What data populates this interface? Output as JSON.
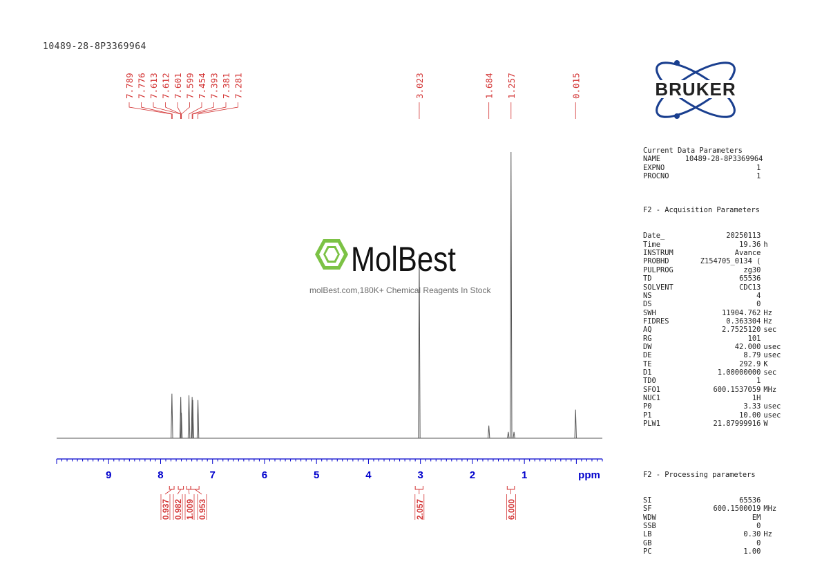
{
  "title": "10489-28-8P3369964",
  "logo": {
    "text": "BRUKER"
  },
  "watermark": {
    "brand": "MolBest",
    "tagline": "molBest.com,180K+ Chemical Reagents In Stock"
  },
  "colors": {
    "peak_labels": "#d33333",
    "axis": "#0000cc",
    "spectrum": "#555555",
    "logo": "#1a3f8f"
  },
  "parameters": {
    "current": {
      "title": "Current Data Parameters",
      "rows": [
        {
          "key": "NAME",
          "value": "10489-28-8P3369964",
          "unit": ""
        },
        {
          "key": "EXPNO",
          "value": "1",
          "unit": ""
        },
        {
          "key": "PROCNO",
          "value": "1",
          "unit": ""
        }
      ]
    },
    "acquisition": {
      "title": "F2 - Acquisition Parameters",
      "rows": [
        {
          "key": "Date_",
          "value": "20250113",
          "unit": ""
        },
        {
          "key": "Time",
          "value": "19.36",
          "unit": "h"
        },
        {
          "key": "INSTRUM",
          "value": "Avance",
          "unit": ""
        },
        {
          "key": "PROBHD",
          "value": "Z154705_0134 (",
          "unit": ""
        },
        {
          "key": "PULPROG",
          "value": "zg30",
          "unit": ""
        },
        {
          "key": "TD",
          "value": "65536",
          "unit": ""
        },
        {
          "key": "SOLVENT",
          "value": "CDC13",
          "unit": ""
        },
        {
          "key": "NS",
          "value": "4",
          "unit": ""
        },
        {
          "key": "DS",
          "value": "0",
          "unit": ""
        },
        {
          "key": "SWH",
          "value": "11904.762",
          "unit": "Hz"
        },
        {
          "key": "FIDRES",
          "value": "0.363304",
          "unit": "Hz"
        },
        {
          "key": "AQ",
          "value": "2.7525120",
          "unit": "sec"
        },
        {
          "key": "RG",
          "value": "101",
          "unit": ""
        },
        {
          "key": "DW",
          "value": "42.000",
          "unit": "usec"
        },
        {
          "key": "DE",
          "value": "8.79",
          "unit": "usec"
        },
        {
          "key": "TE",
          "value": "292.9",
          "unit": "K"
        },
        {
          "key": "D1",
          "value": "1.00000000",
          "unit": "sec"
        },
        {
          "key": "TD0",
          "value": "1",
          "unit": ""
        },
        {
          "key": "SFO1",
          "value": "600.1537059",
          "unit": "MHz"
        },
        {
          "key": "NUC1",
          "value": "1H",
          "unit": ""
        },
        {
          "key": "P0",
          "value": "3.33",
          "unit": "usec"
        },
        {
          "key": "P1",
          "value": "10.00",
          "unit": "usec"
        },
        {
          "key": "PLW1",
          "value": "21.87999916",
          "unit": "W"
        }
      ]
    },
    "processing": {
      "title": "F2 - Processing parameters",
      "rows": [
        {
          "key": "SI",
          "value": "65536",
          "unit": ""
        },
        {
          "key": "SF",
          "value": "600.1500019",
          "unit": "MHz"
        },
        {
          "key": "WDW",
          "value": "EM",
          "unit": ""
        },
        {
          "key": "SSB",
          "value": "0",
          "unit": ""
        },
        {
          "key": "LB",
          "value": "0.30",
          "unit": "Hz"
        },
        {
          "key": "GB",
          "value": "0",
          "unit": ""
        },
        {
          "key": "PC",
          "value": "1.00",
          "unit": ""
        }
      ]
    }
  },
  "chart_data": {
    "type": "line",
    "xlabel": "ppm",
    "xlim": [
      10.0,
      -0.5
    ],
    "x_reversed": true,
    "xticks": [
      "9",
      "8",
      "7",
      "6",
      "5",
      "4",
      "3",
      "2",
      "1"
    ],
    "peak_labels": [
      "7.789",
      "7.776",
      "7.613",
      "7.612",
      "7.601",
      "7.599",
      "7.454",
      "7.393",
      "7.381",
      "7.281",
      "3.023",
      "1.684",
      "1.257",
      "0.015"
    ],
    "peaks": [
      {
        "ppm": 7.782,
        "height": 0.14
      },
      {
        "ppm": 7.612,
        "height": 0.13
      },
      {
        "ppm": 7.6,
        "height": 0.08
      },
      {
        "ppm": 7.454,
        "height": 0.135
      },
      {
        "ppm": 7.393,
        "height": 0.13
      },
      {
        "ppm": 7.381,
        "height": 0.12
      },
      {
        "ppm": 7.281,
        "height": 0.12
      },
      {
        "ppm": 3.023,
        "height": 0.58
      },
      {
        "ppm": 1.684,
        "height": 0.04
      },
      {
        "ppm": 1.257,
        "height": 0.9
      },
      {
        "ppm": 1.2,
        "height": 0.02
      },
      {
        "ppm": 1.31,
        "height": 0.02
      },
      {
        "ppm": 0.015,
        "height": 0.09
      }
    ],
    "integrals": [
      {
        "label": "0.937",
        "from": 7.83,
        "to": 7.74
      },
      {
        "label": "0.982",
        "from": 7.66,
        "to": 7.56
      },
      {
        "label": "1.009",
        "from": 7.5,
        "to": 7.42
      },
      {
        "label": "0.953",
        "from": 7.42,
        "to": 7.26
      },
      {
        "label": "2.057",
        "from": 3.1,
        "to": 2.95
      },
      {
        "label": "6.000",
        "from": 1.33,
        "to": 1.19
      }
    ]
  }
}
